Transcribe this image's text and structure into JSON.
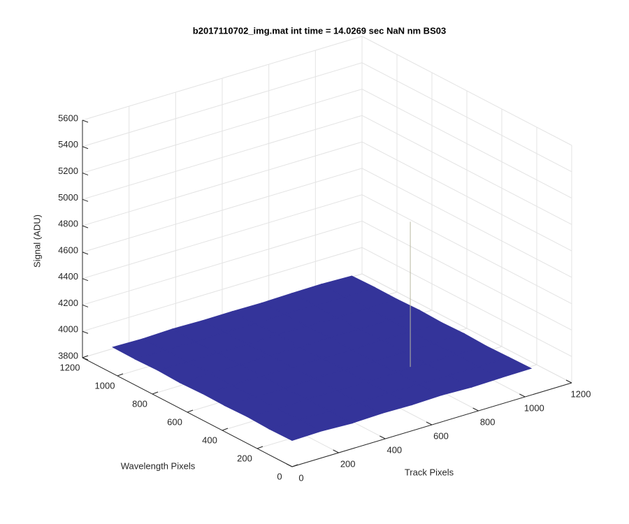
{
  "chart_data": {
    "type": "surface3d",
    "title": "b2017110702_img.mat int time = 14.0269 sec  NaN nm BS03",
    "xlabel": "Track Pixels",
    "ylabel": "Wavelength Pixels",
    "zlabel": "Signal (ADU)",
    "xlim": [
      0,
      1200
    ],
    "ylim": [
      0,
      1200
    ],
    "zlim": [
      3800,
      5600
    ],
    "xticks": [
      0,
      200,
      400,
      600,
      800,
      1000,
      1200
    ],
    "yticks": [
      0,
      200,
      400,
      600,
      800,
      1000,
      1200
    ],
    "zticks": [
      3800,
      4000,
      4200,
      4400,
      4600,
      4800,
      5000,
      5200,
      5400,
      5600
    ],
    "grid": true,
    "color": "#34349a",
    "x": [
      0,
      128,
      256,
      384,
      512,
      640,
      768,
      896,
      1024
    ],
    "y": [
      0,
      128,
      256,
      384,
      512,
      640,
      768,
      896,
      1024
    ],
    "z": [
      [
        4000,
        4005,
        3995,
        4002,
        3998,
        4004,
        3996,
        4001,
        4003
      ],
      [
        3997,
        4003,
        4001,
        3996,
        4004,
        3999,
        4002,
        3998,
        4000
      ],
      [
        4004,
        3998,
        4002,
        4000,
        3997,
        4003,
        3999,
        4005,
        3996
      ],
      [
        3999,
        4001,
        3996,
        4004,
        4002,
        3998,
        4000,
        3997,
        4003
      ],
      [
        4002,
        3997,
        4004,
        3999,
        4001,
        3996,
        4005,
        4000,
        3998
      ],
      [
        3996,
        4004,
        3999,
        4003,
        3997,
        4002,
        3998,
        4001,
        4004
      ],
      [
        4003,
        3999,
        4001,
        3997,
        4005,
        4000,
        3996,
        4002,
        3999
      ],
      [
        3998,
        4002,
        3997,
        4001,
        3999,
        4004,
        4003,
        3996,
        4001
      ],
      [
        4001,
        3996,
        4003,
        3998,
        4000,
        3997,
        4002,
        4004,
        3997
      ]
    ],
    "spike": {
      "x": 706,
      "y": 265,
      "z": 5100
    }
  }
}
